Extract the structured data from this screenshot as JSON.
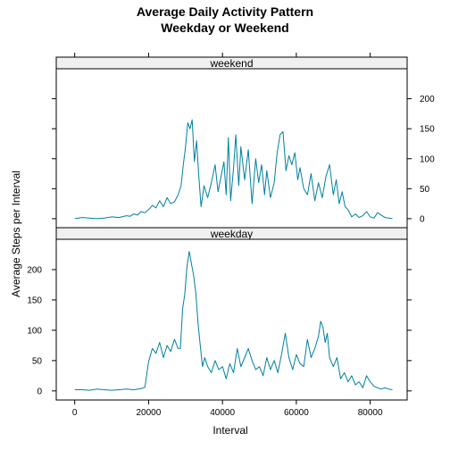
{
  "chart_data": {
    "type": "line",
    "title": [
      "Average Daily Activity Pattern",
      "Weekday or Weekend"
    ],
    "xlabel": "Interval",
    "ylabel": "Average Steps per Interval",
    "xlim": [
      -5000,
      90000
    ],
    "ylim": [
      -15,
      250
    ],
    "x_ticks": [
      0,
      20000,
      40000,
      60000,
      80000
    ],
    "y_ticks": [
      0,
      50,
      100,
      150,
      200
    ],
    "line_color": "#0080A0",
    "panels": [
      {
        "name": "weekend",
        "x": [
          0,
          2000,
          4000,
          6000,
          8000,
          10000,
          12000,
          14000,
          15000,
          16000,
          17000,
          18000,
          19000,
          20000,
          21000,
          22000,
          23000,
          24000,
          25000,
          26000,
          27000,
          28000,
          28800,
          29400,
          30000,
          30600,
          31200,
          31800,
          32400,
          33000,
          33600,
          34200,
          35000,
          36000,
          37000,
          38000,
          38800,
          39600,
          40400,
          41000,
          41600,
          42200,
          43000,
          43600,
          44400,
          45000,
          46000,
          47000,
          48000,
          49000,
          49800,
          50600,
          51400,
          52000,
          53000,
          54000,
          54800,
          55600,
          56400,
          57200,
          58000,
          58800,
          59600,
          60400,
          61000,
          62000,
          63000,
          64000,
          65000,
          66000,
          67000,
          68000,
          69000,
          70000,
          70800,
          71600,
          72400,
          73200,
          74000,
          75000,
          76000,
          77000,
          78000,
          79000,
          80000,
          81000,
          82000,
          83000,
          84000,
          85000,
          86000
        ],
        "y": [
          0,
          2,
          1,
          0,
          1,
          3,
          2,
          5,
          4,
          8,
          6,
          12,
          10,
          15,
          22,
          18,
          30,
          20,
          35,
          25,
          28,
          40,
          55,
          90,
          120,
          160,
          150,
          165,
          95,
          130,
          70,
          20,
          55,
          35,
          60,
          90,
          45,
          70,
          95,
          40,
          135,
          30,
          85,
          140,
          55,
          120,
          65,
          115,
          25,
          100,
          60,
          90,
          40,
          80,
          35,
          60,
          110,
          140,
          145,
          80,
          105,
          90,
          110,
          65,
          85,
          50,
          40,
          75,
          30,
          60,
          35,
          70,
          90,
          40,
          65,
          25,
          45,
          20,
          15,
          3,
          8,
          2,
          5,
          12,
          3,
          1,
          10,
          6,
          2,
          1,
          0
        ]
      },
      {
        "name": "weekday",
        "x": [
          0,
          2000,
          4000,
          6000,
          8000,
          10000,
          12000,
          14000,
          16000,
          18000,
          19000,
          20000,
          21000,
          22000,
          23000,
          24000,
          25000,
          26000,
          27000,
          28000,
          28600,
          29200,
          29800,
          30400,
          31000,
          31600,
          32200,
          32800,
          33400,
          34000,
          34600,
          35200,
          36000,
          37000,
          38000,
          39000,
          40000,
          41000,
          42000,
          43000,
          44000,
          45000,
          46000,
          47000,
          48000,
          49000,
          50000,
          51000,
          52000,
          53000,
          54000,
          55000,
          56000,
          57000,
          58000,
          59000,
          60000,
          61000,
          62000,
          63000,
          64000,
          65000,
          66000,
          66600,
          67200,
          67800,
          68400,
          69000,
          70000,
          71000,
          72000,
          73000,
          74000,
          75000,
          76000,
          77000,
          78000,
          79000,
          80000,
          81000,
          82000,
          83000,
          84000,
          85000,
          86000
        ],
        "y": [
          2,
          2,
          1,
          3,
          2,
          1,
          2,
          3,
          2,
          4,
          6,
          48,
          70,
          62,
          80,
          55,
          75,
          65,
          85,
          70,
          70,
          135,
          160,
          205,
          230,
          210,
          190,
          160,
          110,
          75,
          40,
          55,
          40,
          30,
          50,
          35,
          40,
          20,
          45,
          30,
          70,
          40,
          55,
          70,
          50,
          35,
          40,
          25,
          55,
          35,
          50,
          30,
          60,
          95,
          55,
          35,
          60,
          45,
          40,
          85,
          55,
          70,
          90,
          115,
          105,
          80,
          95,
          55,
          40,
          55,
          20,
          30,
          15,
          25,
          10,
          15,
          5,
          25,
          15,
          8,
          5,
          3,
          5,
          3,
          2
        ]
      }
    ]
  }
}
